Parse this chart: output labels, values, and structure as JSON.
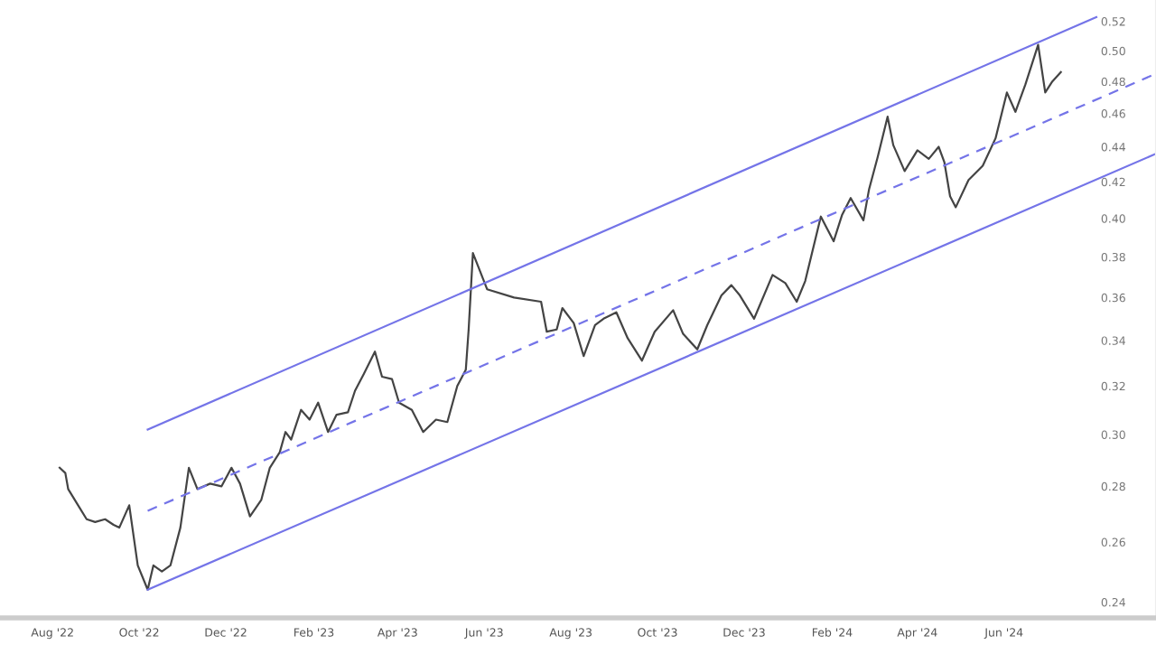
{
  "chart_data": {
    "type": "line",
    "log": "y",
    "xlim": [
      "2022-06-25",
      "2024-09-16"
    ],
    "ylim": [
      0.235,
      0.535
    ],
    "xticks": [
      {
        "value": "2022-08-01",
        "label": "Aug '22"
      },
      {
        "value": "2022-10-01",
        "label": "Oct '22"
      },
      {
        "value": "2022-12-01",
        "label": "Dec '22"
      },
      {
        "value": "2023-02-01",
        "label": "Feb '23"
      },
      {
        "value": "2023-04-01",
        "label": "Apr '23"
      },
      {
        "value": "2023-06-01",
        "label": "Jun '23"
      },
      {
        "value": "2023-08-01",
        "label": "Aug '23"
      },
      {
        "value": "2023-10-01",
        "label": "Oct '23"
      },
      {
        "value": "2023-12-01",
        "label": "Dec '23"
      },
      {
        "value": "2024-02-01",
        "label": "Feb '24"
      },
      {
        "value": "2024-04-01",
        "label": "Apr '24"
      },
      {
        "value": "2024-06-01",
        "label": "Jun '24"
      }
    ],
    "yticks": [
      0.24,
      0.26,
      0.28,
      {
        "value": 0.3,
        "label": "0.30"
      },
      0.32,
      0.34,
      0.36,
      0.38,
      {
        "value": 0.4,
        "label": "0.40"
      },
      0.42,
      0.44,
      0.46,
      0.48,
      {
        "value": 0.5,
        "label": "0.50"
      },
      0.52
    ],
    "series": [
      {
        "color": "#444444",
        "line_style": "solid",
        "x": [
          "2022-08-06",
          "2022-08-10",
          "2022-08-12",
          "2022-08-19",
          "2022-08-25",
          "2022-08-31",
          "2022-09-07",
          "2022-09-13",
          "2022-09-17",
          "2022-09-24",
          "2022-09-30",
          "2022-10-07",
          "2022-10-11",
          "2022-10-17",
          "2022-10-23",
          "2022-10-30",
          "2022-11-05",
          "2022-11-11",
          "2022-11-20",
          "2022-11-28",
          "2022-12-05",
          "2022-12-11",
          "2022-12-18",
          "2022-12-26",
          "2023-01-01",
          "2023-01-08",
          "2023-01-12",
          "2023-01-16",
          "2023-01-23",
          "2023-01-29",
          "2023-02-04",
          "2023-02-11",
          "2023-02-17",
          "2023-02-25",
          "2023-03-02",
          "2023-03-08",
          "2023-03-16",
          "2023-03-21",
          "2023-03-28",
          "2023-04-02",
          "2023-04-11",
          "2023-04-19",
          "2023-04-28",
          "2023-05-06",
          "2023-05-13",
          "2023-05-19",
          "2023-05-21",
          "2023-05-24",
          "2023-06-03",
          "2023-06-22",
          "2023-07-11",
          "2023-07-15",
          "2023-07-22",
          "2023-07-26",
          "2023-08-03",
          "2023-08-10",
          "2023-08-18",
          "2023-08-24",
          "2023-09-02",
          "2023-09-10",
          "2023-09-20",
          "2023-09-29",
          "2023-10-12",
          "2023-10-19",
          "2023-10-29",
          "2023-11-05",
          "2023-11-15",
          "2023-11-22",
          "2023-11-28",
          "2023-12-08",
          "2023-12-21",
          "2023-12-30",
          "2024-01-07",
          "2024-01-13",
          "2024-01-24",
          "2024-02-02",
          "2024-02-08",
          "2024-02-14",
          "2024-02-23",
          "2024-02-27",
          "2024-03-04",
          "2024-03-11",
          "2024-03-15",
          "2024-03-23",
          "2024-04-01",
          "2024-04-09",
          "2024-04-16",
          "2024-04-20",
          "2024-04-24",
          "2024-04-28",
          "2024-05-07",
          "2024-05-17",
          "2024-05-26",
          "2024-06-03",
          "2024-06-09",
          "2024-06-16",
          "2024-06-25",
          "2024-06-30",
          "2024-07-05",
          "2024-07-11"
        ],
        "values": [
          0.287,
          0.285,
          0.279,
          0.273,
          0.268,
          0.267,
          0.268,
          0.266,
          0.265,
          0.273,
          0.252,
          0.244,
          0.252,
          0.25,
          0.252,
          0.265,
          0.287,
          0.279,
          0.281,
          0.28,
          0.287,
          0.281,
          0.269,
          0.275,
          0.287,
          0.293,
          0.301,
          0.298,
          0.31,
          0.306,
          0.313,
          0.301,
          0.308,
          0.309,
          0.318,
          0.325,
          0.335,
          0.324,
          0.323,
          0.313,
          0.31,
          0.301,
          0.306,
          0.305,
          0.32,
          0.327,
          0.345,
          0.382,
          0.364,
          0.36,
          0.358,
          0.344,
          0.345,
          0.355,
          0.348,
          0.333,
          0.347,
          0.35,
          0.353,
          0.341,
          0.331,
          0.344,
          0.354,
          0.343,
          0.336,
          0.347,
          0.361,
          0.366,
          0.361,
          0.35,
          0.371,
          0.367,
          0.358,
          0.368,
          0.401,
          0.388,
          0.402,
          0.411,
          0.399,
          0.416,
          0.434,
          0.458,
          0.441,
          0.426,
          0.438,
          0.433,
          0.44,
          0.431,
          0.412,
          0.406,
          0.421,
          0.429,
          0.445,
          0.473,
          0.461,
          0.478,
          0.504,
          0.473,
          0.48,
          0.486
        ]
      },
      {
        "color": "#7474e8",
        "line_style": "solid",
        "x": [
          "2022-10-07",
          "2024-08-05"
        ],
        "values": [
          0.302,
          0.523
        ]
      },
      {
        "color": "#7474e8",
        "line_style": "dashed",
        "x": [
          "2022-10-07",
          "2024-09-16"
        ],
        "values": [
          0.271,
          0.485
        ]
      },
      {
        "color": "#7474e8",
        "line_style": "solid",
        "x": [
          "2022-10-07",
          "2024-09-16"
        ],
        "values": [
          0.244,
          0.436
        ]
      }
    ]
  }
}
